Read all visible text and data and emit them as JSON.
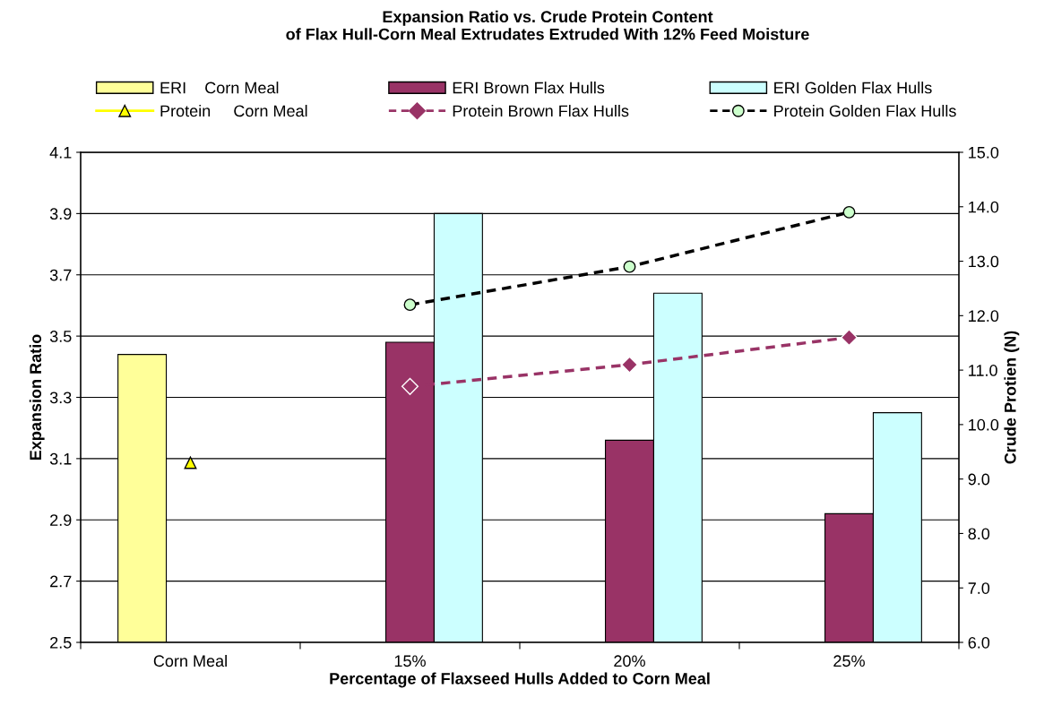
{
  "chart_data": {
    "type": "bar",
    "title": "Expansion Ratio vs. Crude Protein Content\nof Flax Hull-Corn Meal Extrudates Extruded With 12% Feed Moisture",
    "xlabel": "Percentage of Flaxseed Hulls Added to Corn Meal",
    "ylabel": "Expansion Ratio",
    "y2label": "Crude Protien (N)",
    "categories": [
      "Corn Meal",
      "15%",
      "20%",
      "25%"
    ],
    "series": [
      {
        "name": "ERI    Corn Meal",
        "color": "#ffff99",
        "values": [
          3.44,
          null,
          null,
          null
        ]
      },
      {
        "name": "ERI Brown Flax Hulls",
        "color": "#993366",
        "values": [
          null,
          3.48,
          3.16,
          2.92
        ]
      },
      {
        "name": "ERI Golden Flax Hulls",
        "color": "#ccffff",
        "values": [
          null,
          3.9,
          3.64,
          3.25
        ]
      },
      {
        "name": "Protein     Corn Meal",
        "type": "line",
        "axis": "y2",
        "color": "#ffff00",
        "marker": "triangle",
        "line_style": "solid",
        "values": [
          9.3,
          null,
          null,
          null
        ]
      },
      {
        "name": "Protein Brown Flax Hulls",
        "type": "line",
        "axis": "y2",
        "color": "#993366",
        "marker": "diamond",
        "line_style": "dashed",
        "values": [
          null,
          10.7,
          11.1,
          11.6
        ]
      },
      {
        "name": "Protein Golden Flax Hulls",
        "type": "line",
        "axis": "y2",
        "color": "#000000",
        "marker": "circle",
        "line_style": "dashed",
        "values": [
          null,
          12.2,
          12.9,
          13.9
        ]
      }
    ],
    "ylim": [
      2.5,
      4.1
    ],
    "yticks": [
      {
        "value": 2.5,
        "label": "2.5"
      },
      {
        "value": 2.7,
        "label": "2.7"
      },
      {
        "value": 2.9,
        "label": "2.9"
      },
      {
        "value": 3.1,
        "label": "3.1"
      },
      {
        "value": 3.3,
        "label": "3.3"
      },
      {
        "value": 3.5,
        "label": "3.5"
      },
      {
        "value": 3.7,
        "label": "3.7"
      },
      {
        "value": 3.9,
        "label": "3.9"
      },
      {
        "value": 4.1,
        "label": "4.1"
      }
    ],
    "y2lim": [
      6,
      15
    ],
    "y2ticks": [
      {
        "value": 6,
        "label": "6.0"
      },
      {
        "value": 7,
        "label": "7.0"
      },
      {
        "value": 8,
        "label": "8.0"
      },
      {
        "value": 9,
        "label": "9.0"
      },
      {
        "value": 10,
        "label": "10.0"
      },
      {
        "value": 11,
        "label": "11.0"
      },
      {
        "value": 12,
        "label": "12.0"
      },
      {
        "value": 13,
        "label": "13.0"
      },
      {
        "value": 14,
        "label": "14.0"
      },
      {
        "value": 15,
        "label": "15.0"
      }
    ],
    "grid": "y",
    "legend": "top"
  }
}
